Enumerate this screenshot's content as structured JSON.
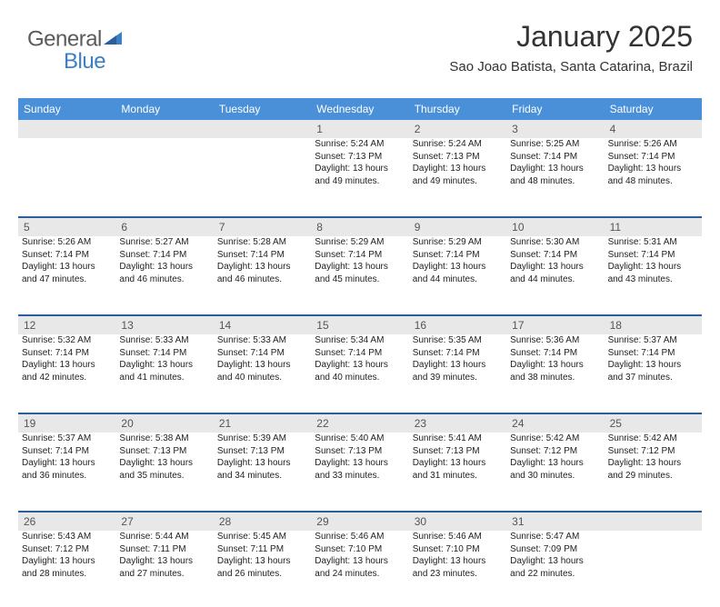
{
  "logo": {
    "part1": "General",
    "part2": "Blue"
  },
  "colors": {
    "header_bg": "#4a90d9",
    "divider": "#2a5f9e",
    "daynum_bg": "#e8e8e8",
    "logo_blue": "#3b7fc4",
    "logo_gray": "#5a5a5a"
  },
  "title": "January 2025",
  "location": "Sao Joao Batista, Santa Catarina, Brazil",
  "day_headers": [
    "Sunday",
    "Monday",
    "Tuesday",
    "Wednesday",
    "Thursday",
    "Friday",
    "Saturday"
  ],
  "weeks": [
    [
      null,
      null,
      null,
      {
        "n": "1",
        "sr": "5:24 AM",
        "ss": "7:13 PM",
        "dl": "13 hours and 49 minutes."
      },
      {
        "n": "2",
        "sr": "5:24 AM",
        "ss": "7:13 PM",
        "dl": "13 hours and 49 minutes."
      },
      {
        "n": "3",
        "sr": "5:25 AM",
        "ss": "7:14 PM",
        "dl": "13 hours and 48 minutes."
      },
      {
        "n": "4",
        "sr": "5:26 AM",
        "ss": "7:14 PM",
        "dl": "13 hours and 48 minutes."
      }
    ],
    [
      {
        "n": "5",
        "sr": "5:26 AM",
        "ss": "7:14 PM",
        "dl": "13 hours and 47 minutes."
      },
      {
        "n": "6",
        "sr": "5:27 AM",
        "ss": "7:14 PM",
        "dl": "13 hours and 46 minutes."
      },
      {
        "n": "7",
        "sr": "5:28 AM",
        "ss": "7:14 PM",
        "dl": "13 hours and 46 minutes."
      },
      {
        "n": "8",
        "sr": "5:29 AM",
        "ss": "7:14 PM",
        "dl": "13 hours and 45 minutes."
      },
      {
        "n": "9",
        "sr": "5:29 AM",
        "ss": "7:14 PM",
        "dl": "13 hours and 44 minutes."
      },
      {
        "n": "10",
        "sr": "5:30 AM",
        "ss": "7:14 PM",
        "dl": "13 hours and 44 minutes."
      },
      {
        "n": "11",
        "sr": "5:31 AM",
        "ss": "7:14 PM",
        "dl": "13 hours and 43 minutes."
      }
    ],
    [
      {
        "n": "12",
        "sr": "5:32 AM",
        "ss": "7:14 PM",
        "dl": "13 hours and 42 minutes."
      },
      {
        "n": "13",
        "sr": "5:33 AM",
        "ss": "7:14 PM",
        "dl": "13 hours and 41 minutes."
      },
      {
        "n": "14",
        "sr": "5:33 AM",
        "ss": "7:14 PM",
        "dl": "13 hours and 40 minutes."
      },
      {
        "n": "15",
        "sr": "5:34 AM",
        "ss": "7:14 PM",
        "dl": "13 hours and 40 minutes."
      },
      {
        "n": "16",
        "sr": "5:35 AM",
        "ss": "7:14 PM",
        "dl": "13 hours and 39 minutes."
      },
      {
        "n": "17",
        "sr": "5:36 AM",
        "ss": "7:14 PM",
        "dl": "13 hours and 38 minutes."
      },
      {
        "n": "18",
        "sr": "5:37 AM",
        "ss": "7:14 PM",
        "dl": "13 hours and 37 minutes."
      }
    ],
    [
      {
        "n": "19",
        "sr": "5:37 AM",
        "ss": "7:14 PM",
        "dl": "13 hours and 36 minutes."
      },
      {
        "n": "20",
        "sr": "5:38 AM",
        "ss": "7:13 PM",
        "dl": "13 hours and 35 minutes."
      },
      {
        "n": "21",
        "sr": "5:39 AM",
        "ss": "7:13 PM",
        "dl": "13 hours and 34 minutes."
      },
      {
        "n": "22",
        "sr": "5:40 AM",
        "ss": "7:13 PM",
        "dl": "13 hours and 33 minutes."
      },
      {
        "n": "23",
        "sr": "5:41 AM",
        "ss": "7:13 PM",
        "dl": "13 hours and 31 minutes."
      },
      {
        "n": "24",
        "sr": "5:42 AM",
        "ss": "7:12 PM",
        "dl": "13 hours and 30 minutes."
      },
      {
        "n": "25",
        "sr": "5:42 AM",
        "ss": "7:12 PM",
        "dl": "13 hours and 29 minutes."
      }
    ],
    [
      {
        "n": "26",
        "sr": "5:43 AM",
        "ss": "7:12 PM",
        "dl": "13 hours and 28 minutes."
      },
      {
        "n": "27",
        "sr": "5:44 AM",
        "ss": "7:11 PM",
        "dl": "13 hours and 27 minutes."
      },
      {
        "n": "28",
        "sr": "5:45 AM",
        "ss": "7:11 PM",
        "dl": "13 hours and 26 minutes."
      },
      {
        "n": "29",
        "sr": "5:46 AM",
        "ss": "7:10 PM",
        "dl": "13 hours and 24 minutes."
      },
      {
        "n": "30",
        "sr": "5:46 AM",
        "ss": "7:10 PM",
        "dl": "13 hours and 23 minutes."
      },
      {
        "n": "31",
        "sr": "5:47 AM",
        "ss": "7:09 PM",
        "dl": "13 hours and 22 minutes."
      },
      null
    ]
  ],
  "labels": {
    "sunrise": "Sunrise:",
    "sunset": "Sunset:",
    "daylight": "Daylight:"
  }
}
